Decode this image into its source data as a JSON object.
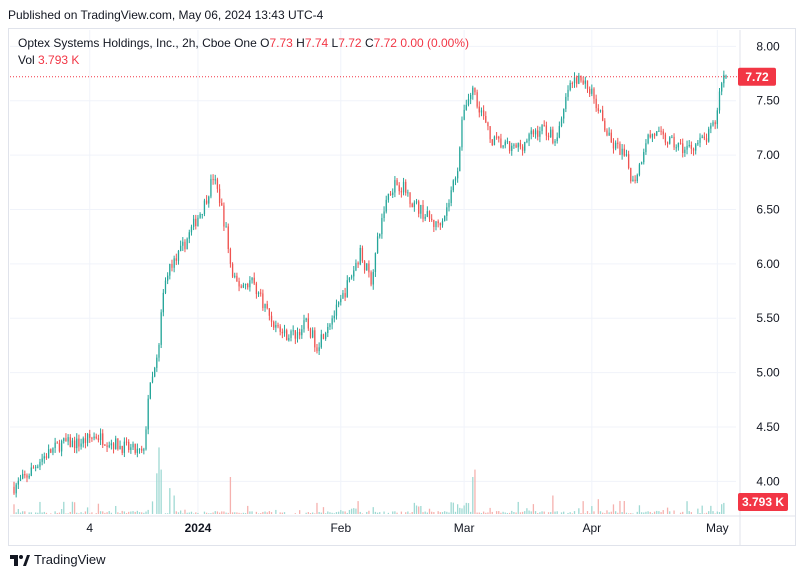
{
  "header": {
    "published": "Published on TradingView.com, May 06, 2024 13:43 UTC-4"
  },
  "legend": {
    "symbol": "Optex Systems Holdings, Inc., 2h, Cboe One",
    "open_label": "O",
    "open": "7.73",
    "high_label": "H",
    "high": "7.74",
    "low_label": "L",
    "low": "7.72",
    "close_label": "C",
    "close": "7.72",
    "change": "0.00 (0.00%)",
    "vol_label": "Vol",
    "vol": "3.793 K"
  },
  "footer": {
    "brand": "TradingView",
    "logo_icon": "tradingview-logo-icon"
  },
  "colors": {
    "up": "#26a69a",
    "down": "#ef5350",
    "up_vol": "#9fd9d3",
    "down_vol": "#f5b1ae",
    "last_price": "#f23645",
    "grid": "#f0f3fa",
    "axis_text": "#131722"
  },
  "chart_data": {
    "type": "candlestick",
    "y_ticks": [
      "8.00",
      "7.50",
      "7.00",
      "6.50",
      "6.00",
      "5.50",
      "5.00",
      "4.50",
      "4.00"
    ],
    "ylim": [
      3.7,
      8.15
    ],
    "x_ticks": [
      {
        "label": "4",
        "idx": 35,
        "bold": false
      },
      {
        "label": "2024",
        "idx": 85,
        "bold": true
      },
      {
        "label": "Feb",
        "idx": 151,
        "bold": false
      },
      {
        "label": "Mar",
        "idx": 208,
        "bold": false
      },
      {
        "label": "Apr",
        "idx": 267,
        "bold": false
      },
      {
        "label": "May",
        "idx": 325,
        "bold": false
      }
    ],
    "last_price": "7.72",
    "last_volume": "3.793 K",
    "anchors": [
      [
        0,
        3.95
      ],
      [
        6,
        4.05
      ],
      [
        12,
        4.2
      ],
      [
        22,
        4.35
      ],
      [
        30,
        4.35
      ],
      [
        38,
        4.42
      ],
      [
        46,
        4.35
      ],
      [
        53,
        4.3
      ],
      [
        60,
        4.25
      ],
      [
        62,
        4.78
      ],
      [
        66,
        5.1
      ],
      [
        70,
        5.9
      ],
      [
        74,
        6.0
      ],
      [
        78,
        6.15
      ],
      [
        84,
        6.4
      ],
      [
        88,
        6.55
      ],
      [
        92,
        6.8
      ],
      [
        95,
        6.6
      ],
      [
        98,
        6.3
      ],
      [
        101,
        5.85
      ],
      [
        105,
        5.8
      ],
      [
        110,
        5.85
      ],
      [
        115,
        5.65
      ],
      [
        120,
        5.45
      ],
      [
        125,
        5.35
      ],
      [
        130,
        5.35
      ],
      [
        135,
        5.45
      ],
      [
        140,
        5.25
      ],
      [
        145,
        5.45
      ],
      [
        150,
        5.6
      ],
      [
        155,
        5.85
      ],
      [
        160,
        6.1
      ],
      [
        165,
        5.85
      ],
      [
        168,
        6.2
      ],
      [
        172,
        6.6
      ],
      [
        176,
        6.75
      ],
      [
        180,
        6.7
      ],
      [
        185,
        6.55
      ],
      [
        190,
        6.45
      ],
      [
        195,
        6.35
      ],
      [
        200,
        6.5
      ],
      [
        205,
        6.9
      ],
      [
        208,
        7.45
      ],
      [
        212,
        7.6
      ],
      [
        216,
        7.4
      ],
      [
        220,
        7.15
      ],
      [
        225,
        7.1
      ],
      [
        230,
        7.05
      ],
      [
        235,
        7.1
      ],
      [
        240,
        7.2
      ],
      [
        245,
        7.25
      ],
      [
        250,
        7.15
      ],
      [
        253,
        7.3
      ],
      [
        256,
        7.6
      ],
      [
        260,
        7.7
      ],
      [
        264,
        7.65
      ],
      [
        268,
        7.55
      ],
      [
        272,
        7.3
      ],
      [
        276,
        7.1
      ],
      [
        280,
        7.05
      ],
      [
        283,
        6.95
      ],
      [
        286,
        6.75
      ],
      [
        289,
        6.9
      ],
      [
        292,
        7.15
      ],
      [
        296,
        7.2
      ],
      [
        300,
        7.15
      ],
      [
        305,
        7.1
      ],
      [
        310,
        7.05
      ],
      [
        315,
        7.1
      ],
      [
        320,
        7.15
      ],
      [
        324,
        7.3
      ],
      [
        327,
        7.7
      ],
      [
        328,
        7.72
      ]
    ],
    "volume_spikes": [
      [
        66,
        0.55
      ],
      [
        67,
        0.9
      ],
      [
        68,
        0.6
      ],
      [
        72,
        0.35
      ],
      [
        74,
        0.25
      ],
      [
        100,
        0.5
      ],
      [
        212,
        0.5
      ],
      [
        213,
        0.6
      ],
      [
        249,
        0.25
      ],
      [
        270,
        0.2
      ],
      [
        328,
        0.15
      ]
    ]
  }
}
